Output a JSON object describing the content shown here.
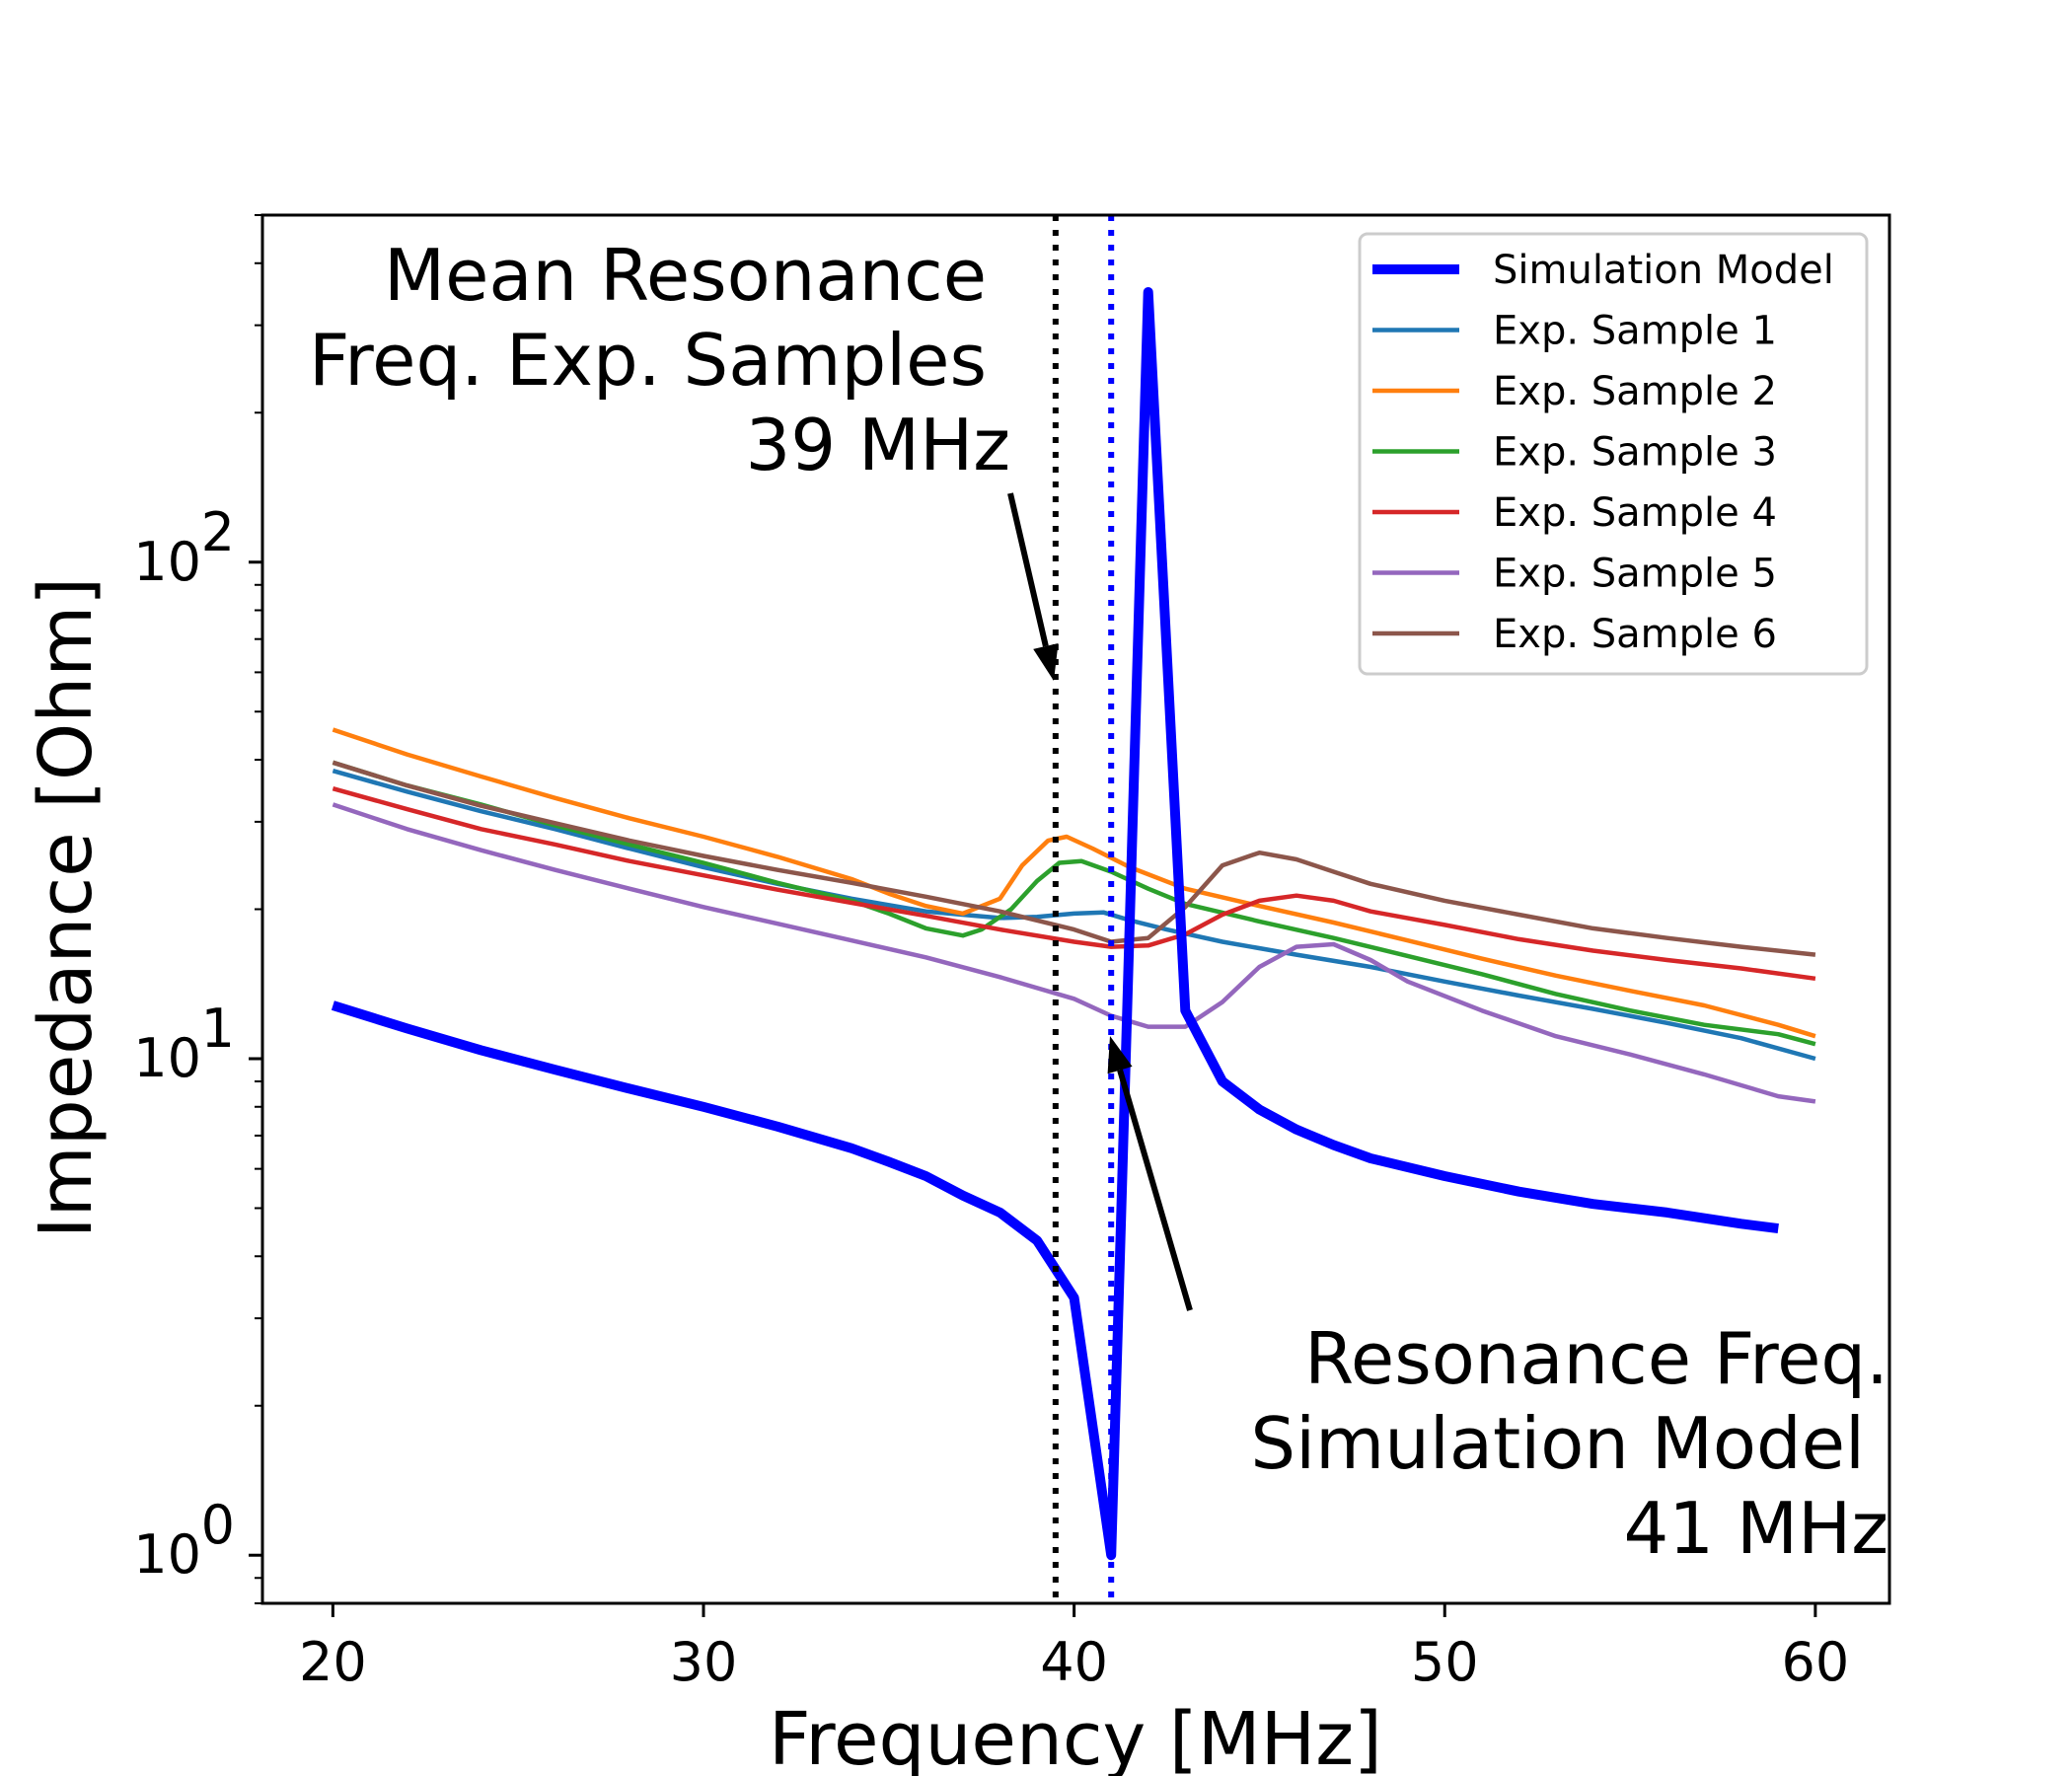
{
  "chart_data": {
    "type": "line",
    "title": "",
    "xlabel": "Frequency [MHz]",
    "ylabel": "Impedance [Ohm]",
    "xlim": [
      18.1,
      62.0
    ],
    "ylim": [
      0.8,
      500
    ],
    "yscale": "log",
    "x_ticks": [
      {
        "value": 20,
        "label": "20"
      },
      {
        "value": 30,
        "label": "30"
      },
      {
        "value": 40,
        "label": "40"
      },
      {
        "value": 50,
        "label": "50"
      },
      {
        "value": 60,
        "label": "60"
      }
    ],
    "y_ticks": [
      {
        "value": 1,
        "base": "10",
        "exp": "0"
      },
      {
        "value": 10,
        "base": "10",
        "exp": "1"
      },
      {
        "value": 100,
        "base": "10",
        "exp": "2"
      }
    ],
    "grid": false,
    "legend_position": "top-right",
    "series": [
      {
        "name": "Simulation Model",
        "color": "#0000ff",
        "width": 10,
        "points": [
          [
            20,
            12.8
          ],
          [
            22,
            11.5
          ],
          [
            24,
            10.4
          ],
          [
            26,
            9.5
          ],
          [
            28,
            8.7
          ],
          [
            30,
            8.0
          ],
          [
            32,
            7.3
          ],
          [
            34,
            6.6
          ],
          [
            35,
            6.2
          ],
          [
            36,
            5.8
          ],
          [
            37,
            5.3
          ],
          [
            38,
            4.9
          ],
          [
            39,
            4.3
          ],
          [
            40,
            3.3
          ],
          [
            41,
            1.0
          ],
          [
            42,
            350
          ],
          [
            43,
            12.5
          ],
          [
            44,
            9.0
          ],
          [
            45,
            7.9
          ],
          [
            46,
            7.2
          ],
          [
            47,
            6.7
          ],
          [
            48,
            6.3
          ],
          [
            50,
            5.8
          ],
          [
            52,
            5.4
          ],
          [
            54,
            5.1
          ],
          [
            56,
            4.9
          ],
          [
            58,
            4.65
          ],
          [
            59,
            4.55
          ]
        ]
      },
      {
        "name": "Exp. Sample 1",
        "color": "#1f77b4",
        "width": 4.5,
        "points": [
          [
            20,
            38
          ],
          [
            22,
            34.5
          ],
          [
            24,
            31.5
          ],
          [
            26,
            29
          ],
          [
            28,
            26.5
          ],
          [
            30,
            24.3
          ],
          [
            32,
            22.5
          ],
          [
            34,
            21
          ],
          [
            36,
            19.8
          ],
          [
            38,
            19.2
          ],
          [
            39,
            19.3
          ],
          [
            40,
            19.6
          ],
          [
            40.8,
            19.7
          ],
          [
            41.5,
            19.0
          ],
          [
            42.5,
            18.2
          ],
          [
            44,
            17.2
          ],
          [
            46,
            16.2
          ],
          [
            48,
            15.3
          ],
          [
            50,
            14.3
          ],
          [
            52,
            13.4
          ],
          [
            54,
            12.6
          ],
          [
            56,
            11.8
          ],
          [
            58,
            11.0
          ],
          [
            60,
            10.0
          ]
        ]
      },
      {
        "name": "Exp. Sample 2",
        "color": "#ff7f0e",
        "width": 4.5,
        "points": [
          [
            20,
            46
          ],
          [
            22,
            41
          ],
          [
            24,
            37
          ],
          [
            26,
            33.5
          ],
          [
            28,
            30.5
          ],
          [
            30,
            28
          ],
          [
            32,
            25.5
          ],
          [
            34,
            23
          ],
          [
            35,
            21.5
          ],
          [
            36,
            20.3
          ],
          [
            37,
            19.6
          ],
          [
            38,
            21.0
          ],
          [
            38.6,
            24.5
          ],
          [
            39.3,
            27.5
          ],
          [
            39.8,
            28.0
          ],
          [
            40.5,
            26.5
          ],
          [
            41.5,
            24.3
          ],
          [
            43,
            22.0
          ],
          [
            45,
            20.3
          ],
          [
            47,
            18.8
          ],
          [
            49,
            17.3
          ],
          [
            51,
            15.9
          ],
          [
            53,
            14.7
          ],
          [
            55,
            13.7
          ],
          [
            57,
            12.8
          ],
          [
            59,
            11.7
          ],
          [
            60,
            11.1
          ]
        ]
      },
      {
        "name": "Exp. Sample 3",
        "color": "#2ca02c",
        "width": 4.5,
        "points": [
          [
            20,
            39.5
          ],
          [
            22,
            35.5
          ],
          [
            24,
            32.5
          ],
          [
            26,
            29.5
          ],
          [
            28,
            27
          ],
          [
            30,
            24.8
          ],
          [
            32,
            22.6
          ],
          [
            34,
            20.8
          ],
          [
            35,
            19.6
          ],
          [
            36,
            18.3
          ],
          [
            37,
            17.7
          ],
          [
            37.5,
            18.2
          ],
          [
            38.3,
            20.0
          ],
          [
            39,
            22.8
          ],
          [
            39.6,
            24.8
          ],
          [
            40.2,
            25.0
          ],
          [
            41,
            23.8
          ],
          [
            42,
            22.0
          ],
          [
            43,
            20.5
          ],
          [
            45,
            18.9
          ],
          [
            47,
            17.5
          ],
          [
            49,
            16.1
          ],
          [
            51,
            14.8
          ],
          [
            53,
            13.5
          ],
          [
            55,
            12.5
          ],
          [
            57,
            11.7
          ],
          [
            59,
            11.2
          ],
          [
            60,
            10.7
          ]
        ]
      },
      {
        "name": "Exp. Sample 4",
        "color": "#d62728",
        "width": 4.5,
        "points": [
          [
            20,
            35
          ],
          [
            22,
            31.8
          ],
          [
            24,
            29
          ],
          [
            26,
            27
          ],
          [
            28,
            25
          ],
          [
            30,
            23.4
          ],
          [
            32,
            21.9
          ],
          [
            34,
            20.6
          ],
          [
            36,
            19.4
          ],
          [
            38,
            18.2
          ],
          [
            40,
            17.2
          ],
          [
            41,
            16.8
          ],
          [
            42,
            16.9
          ],
          [
            43,
            17.8
          ],
          [
            44,
            19.5
          ],
          [
            45,
            20.8
          ],
          [
            46,
            21.3
          ],
          [
            47,
            20.8
          ],
          [
            48,
            19.8
          ],
          [
            50,
            18.6
          ],
          [
            52,
            17.4
          ],
          [
            54,
            16.5
          ],
          [
            56,
            15.8
          ],
          [
            58,
            15.2
          ],
          [
            60,
            14.5
          ]
        ]
      },
      {
        "name": "Exp. Sample 5",
        "color": "#9467bd",
        "width": 4.5,
        "points": [
          [
            20,
            32.5
          ],
          [
            22,
            29
          ],
          [
            24,
            26.3
          ],
          [
            26,
            24
          ],
          [
            28,
            22
          ],
          [
            30,
            20.2
          ],
          [
            32,
            18.7
          ],
          [
            34,
            17.3
          ],
          [
            36,
            16.0
          ],
          [
            38,
            14.6
          ],
          [
            40,
            13.2
          ],
          [
            41,
            12.2
          ],
          [
            42,
            11.6
          ],
          [
            43,
            11.6
          ],
          [
            44,
            13.0
          ],
          [
            45,
            15.3
          ],
          [
            46,
            16.8
          ],
          [
            47,
            17.0
          ],
          [
            48,
            15.8
          ],
          [
            49,
            14.3
          ],
          [
            51,
            12.5
          ],
          [
            53,
            11.1
          ],
          [
            55,
            10.2
          ],
          [
            57,
            9.3
          ],
          [
            59,
            8.4
          ],
          [
            60,
            8.2
          ]
        ]
      },
      {
        "name": "Exp. Sample 6",
        "color": "#8c564b",
        "width": 4.5,
        "points": [
          [
            20,
            39.5
          ],
          [
            22,
            35.5
          ],
          [
            24,
            32.3
          ],
          [
            26,
            29.8
          ],
          [
            28,
            27.5
          ],
          [
            30,
            25.6
          ],
          [
            32,
            24.0
          ],
          [
            34,
            22.6
          ],
          [
            36,
            21.2
          ],
          [
            38,
            19.8
          ],
          [
            40,
            18.2
          ],
          [
            41,
            17.2
          ],
          [
            42,
            17.5
          ],
          [
            43,
            20.2
          ],
          [
            44,
            24.5
          ],
          [
            45,
            26.0
          ],
          [
            46,
            25.2
          ],
          [
            47,
            23.8
          ],
          [
            48,
            22.5
          ],
          [
            50,
            20.8
          ],
          [
            52,
            19.5
          ],
          [
            54,
            18.3
          ],
          [
            56,
            17.5
          ],
          [
            58,
            16.8
          ],
          [
            60,
            16.2
          ]
        ]
      }
    ],
    "vlines": [
      {
        "x": 39.5,
        "color": "#000000",
        "style": "dotted"
      },
      {
        "x": 41.0,
        "color": "#0000ff",
        "style": "dotted"
      }
    ],
    "annotations": [
      {
        "lines": [
          "Mean Resonance",
          "Freq. Exp. Samples",
          "39 MHz"
        ],
        "align": "right"
      },
      {
        "lines": [
          "Resonance Freq.",
          "Simulation Model",
          "41 MHz"
        ],
        "align": "right"
      }
    ]
  }
}
